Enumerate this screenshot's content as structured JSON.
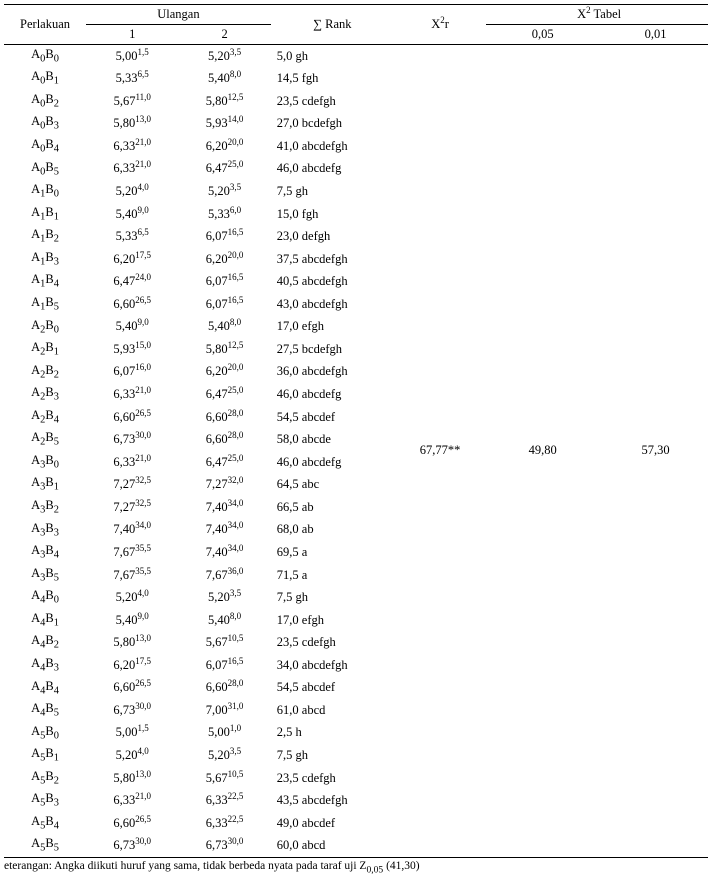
{
  "header": {
    "perlakuan": "Perlakuan",
    "ulangan": "Ulangan",
    "u1": "1",
    "u2": "2",
    "sumrank": "∑ Rank",
    "x2r": "X",
    "x2r_sup": "2",
    "x2r_suffix": "r",
    "x2tabel": "X",
    "x2tabel_sup": "2",
    "x2tabel_suffix": " Tabel",
    "t005": "0,05",
    "t001": "0,01"
  },
  "stats": {
    "x2r": "67,77**",
    "t005": "49,80",
    "t001": "57,30"
  },
  "rows": [
    {
      "p": "A",
      "p0": "0",
      "b": "B",
      "b0": "0",
      "v1": "5,00",
      "s1": "1,5",
      "v2": "5,20",
      "s2": "3,5",
      "r": "5,0 gh"
    },
    {
      "p": "A",
      "p0": "0",
      "b": "B",
      "b0": "1",
      "v1": "5,33",
      "s1": "6,5",
      "v2": "5,40",
      "s2": "8,0",
      "r": "14,5 fgh"
    },
    {
      "p": "A",
      "p0": "0",
      "b": "B",
      "b0": "2",
      "v1": "5,67",
      "s1": "11,0",
      "v2": "5,80",
      "s2": "12,5",
      "r": "23,5 cdefgh"
    },
    {
      "p": "A",
      "p0": "0",
      "b": "B",
      "b0": "3",
      "v1": "5,80",
      "s1": "13,0",
      "v2": "5,93",
      "s2": "14,0",
      "r": "27,0 bcdefgh"
    },
    {
      "p": "A",
      "p0": "0",
      "b": "B",
      "b0": "4",
      "v1": "6,33",
      "s1": "21,0",
      "v2": "6,20",
      "s2": "20,0",
      "r": "41,0 abcdefgh"
    },
    {
      "p": "A",
      "p0": "0",
      "b": "B",
      "b0": "5",
      "v1": "6,33",
      "s1": "21,0",
      "v2": "6,47",
      "s2": "25,0",
      "r": "46,0 abcdefg"
    },
    {
      "p": "A",
      "p0": "1",
      "b": "B",
      "b0": "0",
      "v1": "5,20",
      "s1": "4,0",
      "v2": "5,20",
      "s2": "3,5",
      "r": "7,5 gh"
    },
    {
      "p": "A",
      "p0": "1",
      "b": "B",
      "b0": "1",
      "v1": "5,40",
      "s1": "9,0",
      "v2": "5,33",
      "s2": "6,0",
      "r": "15,0 fgh"
    },
    {
      "p": "A",
      "p0": "1",
      "b": "B",
      "b0": "2",
      "v1": "5,33",
      "s1": "6,5",
      "v2": "6,07",
      "s2": "16,5",
      "r": "23,0 defgh"
    },
    {
      "p": "A",
      "p0": "1",
      "b": "B",
      "b0": "3",
      "v1": "6,20",
      "s1": "17,5",
      "v2": "6,20",
      "s2": "20,0",
      "r": "37,5 abcdefgh"
    },
    {
      "p": "A",
      "p0": "1",
      "b": "B",
      "b0": "4",
      "v1": "6,47",
      "s1": "24,0",
      "v2": "6,07",
      "s2": "16,5",
      "r": "40,5 abcdefgh"
    },
    {
      "p": "A",
      "p0": "1",
      "b": "B",
      "b0": "5",
      "v1": "6,60",
      "s1": "26,5",
      "v2": "6,07",
      "s2": "16,5",
      "r": "43,0 abcdefgh"
    },
    {
      "p": "A",
      "p0": "2",
      "b": "B",
      "b0": "0",
      "v1": "5,40",
      "s1": "9,0",
      "v2": "5,40",
      "s2": "8,0",
      "r": "17,0 efgh"
    },
    {
      "p": "A",
      "p0": "2",
      "b": "B",
      "b0": "1",
      "v1": "5,93",
      "s1": "15,0",
      "v2": "5,80",
      "s2": "12,5",
      "r": "27,5 bcdefgh"
    },
    {
      "p": "A",
      "p0": "2",
      "b": "B",
      "b0": "2",
      "v1": "6,07",
      "s1": "16,0",
      "v2": "6,20",
      "s2": "20,0",
      "r": "36,0 abcdefgh"
    },
    {
      "p": "A",
      "p0": "2",
      "b": "B",
      "b0": "3",
      "v1": "6,33",
      "s1": "21,0",
      "v2": "6,47",
      "s2": "25,0",
      "r": "46,0 abcdefg"
    },
    {
      "p": "A",
      "p0": "2",
      "b": "B",
      "b0": "4",
      "v1": "6,60",
      "s1": "26,5",
      "v2": "6,60",
      "s2": "28,0",
      "r": "54,5 abcdef"
    },
    {
      "p": "A",
      "p0": "2",
      "b": "B",
      "b0": "5",
      "v1": "6,73",
      "s1": "30,0",
      "v2": "6,60",
      "s2": "28,0",
      "r": "58,0 abcde"
    },
    {
      "p": "A",
      "p0": "3",
      "b": "B",
      "b0": "0",
      "v1": "6,33",
      "s1": "21,0",
      "v2": "6,47",
      "s2": "25,0",
      "r": "46,0 abcdefg"
    },
    {
      "p": "A",
      "p0": "3",
      "b": "B",
      "b0": "1",
      "v1": "7,27",
      "s1": "32,5",
      "v2": "7,27",
      "s2": "32,0",
      "r": "64,5 abc"
    },
    {
      "p": "A",
      "p0": "3",
      "b": "B",
      "b0": "2",
      "v1": "7,27",
      "s1": "32,5",
      "v2": "7,40",
      "s2": "34,0",
      "r": "66,5 ab"
    },
    {
      "p": "A",
      "p0": "3",
      "b": "B",
      "b0": "3",
      "v1": "7,40",
      "s1": "34,0",
      "v2": "7,40",
      "s2": "34,0",
      "r": "68,0 ab"
    },
    {
      "p": "A",
      "p0": "3",
      "b": "B",
      "b0": "4",
      "v1": "7,67",
      "s1": "35,5",
      "v2": "7,40",
      "s2": "34,0",
      "r": "69,5 a"
    },
    {
      "p": "A",
      "p0": "3",
      "b": "B",
      "b0": "5",
      "v1": "7,67",
      "s1": "35,5",
      "v2": "7,67",
      "s2": "36,0",
      "r": "71,5 a"
    },
    {
      "p": "A",
      "p0": "4",
      "b": "B",
      "b0": "0",
      "v1": "5,20",
      "s1": "4,0",
      "v2": "5,20",
      "s2": "3,5",
      "r": "7,5 gh"
    },
    {
      "p": "A",
      "p0": "4",
      "b": "B",
      "b0": "1",
      "v1": "5,40",
      "s1": "9,0",
      "v2": "5,40",
      "s2": "8,0",
      "r": "17,0 efgh"
    },
    {
      "p": "A",
      "p0": "4",
      "b": "B",
      "b0": "2",
      "v1": "5,80",
      "s1": "13,0",
      "v2": "5,67",
      "s2": "10,5",
      "r": "23,5 cdefgh"
    },
    {
      "p": "A",
      "p0": "4",
      "b": "B",
      "b0": "3",
      "v1": "6,20",
      "s1": "17,5",
      "v2": "6,07",
      "s2": "16,5",
      "r": "34,0 abcdefgh"
    },
    {
      "p": "A",
      "p0": "4",
      "b": "B",
      "b0": "4",
      "v1": "6,60",
      "s1": "26,5",
      "v2": "6,60",
      "s2": "28,0",
      "r": "54,5 abcdef"
    },
    {
      "p": "A",
      "p0": "4",
      "b": "B",
      "b0": "5",
      "v1": "6,73",
      "s1": "30,0",
      "v2": "7,00",
      "s2": "31,0",
      "r": "61,0 abcd"
    },
    {
      "p": "A",
      "p0": "5",
      "b": "B",
      "b0": "0",
      "v1": "5,00",
      "s1": "1,5",
      "v2": "5,00",
      "s2": "1,0",
      "r": "2,5 h"
    },
    {
      "p": "A",
      "p0": "5",
      "b": "B",
      "b0": "1",
      "v1": "5,20",
      "s1": "4,0",
      "v2": "5,20",
      "s2": "3,5",
      "r": "7,5 gh"
    },
    {
      "p": "A",
      "p0": "5",
      "b": "B",
      "b0": "2",
      "v1": "5,80",
      "s1": "13,0",
      "v2": "5,67",
      "s2": "10,5",
      "r": "23,5 cdefgh"
    },
    {
      "p": "A",
      "p0": "5",
      "b": "B",
      "b0": "3",
      "v1": "6,33",
      "s1": "21,0",
      "v2": "6,33",
      "s2": "22,5",
      "r": "43,5 abcdefgh"
    },
    {
      "p": "A",
      "p0": "5",
      "b": "B",
      "b0": "4",
      "v1": "6,60",
      "s1": "26,5",
      "v2": "6,33",
      "s2": "22,5",
      "r": "49,0 abcdef"
    },
    {
      "p": "A",
      "p0": "5",
      "b": "B",
      "b0": "5",
      "v1": "6,73",
      "s1": "30,0",
      "v2": "6,73",
      "s2": "30,0",
      "r": "60,0 abcd"
    }
  ],
  "footnote": "eterangan: Angka diikuti huruf yang sama, tidak berbeda nyata pada taraf uji  Z",
  "footnote_tail": "    (41,30)"
}
